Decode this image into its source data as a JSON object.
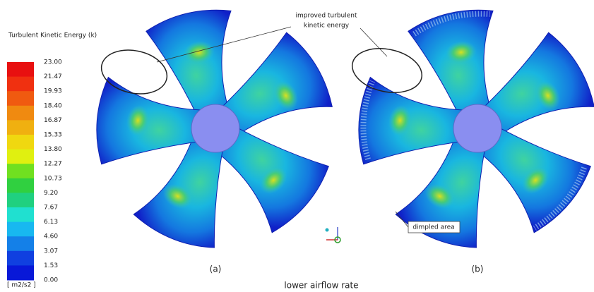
{
  "colorbar": {
    "title": "Turbulent Kinetic Energy (k)",
    "labels": [
      "23.00",
      "21.47",
      "19.93",
      "18.40",
      "16.87",
      "15.33",
      "13.80",
      "12.27",
      "10.73",
      "9.20",
      "7.67",
      "6.13",
      "4.60",
      "3.07",
      "1.53",
      "0.00"
    ],
    "unit": "[ m2/s2 ]"
  },
  "annotations": {
    "improved": [
      "improved turbulent",
      "kinetic energy"
    ],
    "dimpled": "dimpled area"
  },
  "panels": [
    "(a)",
    "(b)"
  ],
  "caption": "lower airflow rate"
}
